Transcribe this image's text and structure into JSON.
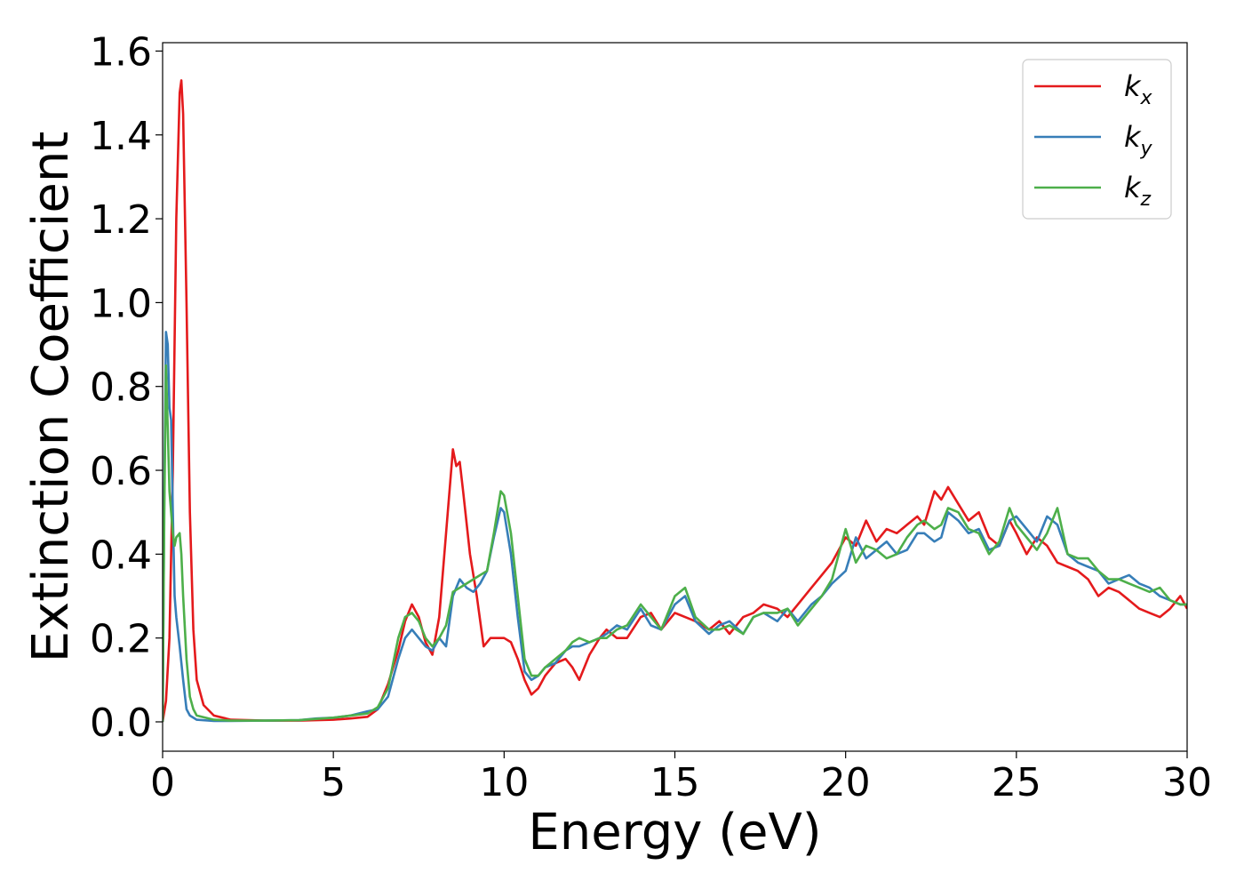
{
  "chart_data": {
    "type": "line",
    "title": "",
    "xlabel": "Energy (eV)",
    "ylabel": "Extinction Coefficient",
    "xlim": [
      0,
      30
    ],
    "ylim": [
      -0.07,
      1.62
    ],
    "xticks": [
      0,
      5,
      10,
      15,
      20,
      25,
      30
    ],
    "yticks": [
      0.0,
      0.2,
      0.4,
      0.6,
      0.8,
      1.0,
      1.2,
      1.4,
      1.6
    ],
    "xtick_labels": [
      "0",
      "5",
      "10",
      "15",
      "20",
      "25",
      "30"
    ],
    "ytick_labels": [
      "0.0",
      "0.2",
      "0.4",
      "0.6",
      "0.8",
      "1.0",
      "1.2",
      "1.4",
      "1.6"
    ],
    "grid": false,
    "legend_position": "top-right",
    "series": [
      {
        "name": "k_x",
        "legend_base": "k",
        "legend_sub": "x",
        "color": "#e41a1c",
        "x": [
          0,
          0.1,
          0.2,
          0.3,
          0.4,
          0.5,
          0.55,
          0.6,
          0.7,
          0.8,
          0.9,
          1.0,
          1.2,
          1.5,
          2,
          3,
          4,
          5,
          5.5,
          6,
          6.3,
          6.6,
          6.9,
          7.1,
          7.3,
          7.5,
          7.7,
          7.9,
          8.1,
          8.3,
          8.5,
          8.6,
          8.7,
          8.8,
          9.0,
          9.2,
          9.4,
          9.6,
          9.8,
          10.0,
          10.2,
          10.4,
          10.6,
          10.8,
          11.0,
          11.2,
          11.5,
          11.8,
          12.0,
          12.2,
          12.5,
          12.8,
          13.0,
          13.3,
          13.6,
          14.0,
          14.3,
          14.6,
          15.0,
          15.3,
          15.6,
          16.0,
          16.3,
          16.6,
          17.0,
          17.3,
          17.6,
          18.0,
          18.3,
          18.6,
          19.0,
          19.3,
          19.6,
          20.0,
          20.3,
          20.6,
          20.9,
          21.2,
          21.5,
          21.8,
          22.1,
          22.3,
          22.6,
          22.8,
          23.0,
          23.3,
          23.6,
          23.9,
          24.2,
          24.5,
          24.8,
          25.0,
          25.3,
          25.6,
          25.9,
          26.2,
          26.5,
          26.8,
          27.1,
          27.4,
          27.7,
          28.0,
          28.3,
          28.6,
          28.9,
          29.2,
          29.5,
          29.8,
          30.0
        ],
        "y": [
          0.0,
          0.05,
          0.2,
          0.6,
          1.2,
          1.5,
          1.53,
          1.45,
          1.0,
          0.5,
          0.22,
          0.1,
          0.04,
          0.015,
          0.005,
          0.003,
          0.003,
          0.005,
          0.008,
          0.012,
          0.03,
          0.09,
          0.17,
          0.24,
          0.28,
          0.25,
          0.19,
          0.16,
          0.25,
          0.45,
          0.65,
          0.61,
          0.62,
          0.55,
          0.4,
          0.3,
          0.18,
          0.2,
          0.2,
          0.2,
          0.19,
          0.15,
          0.1,
          0.065,
          0.08,
          0.11,
          0.14,
          0.15,
          0.13,
          0.1,
          0.16,
          0.2,
          0.22,
          0.2,
          0.2,
          0.25,
          0.26,
          0.22,
          0.26,
          0.25,
          0.24,
          0.22,
          0.24,
          0.21,
          0.25,
          0.26,
          0.28,
          0.27,
          0.25,
          0.28,
          0.32,
          0.35,
          0.38,
          0.44,
          0.42,
          0.48,
          0.43,
          0.46,
          0.45,
          0.47,
          0.49,
          0.47,
          0.55,
          0.53,
          0.56,
          0.52,
          0.48,
          0.5,
          0.44,
          0.42,
          0.48,
          0.45,
          0.4,
          0.44,
          0.42,
          0.38,
          0.37,
          0.36,
          0.34,
          0.3,
          0.32,
          0.31,
          0.29,
          0.27,
          0.26,
          0.25,
          0.27,
          0.3,
          0.27
        ]
      },
      {
        "name": "k_y",
        "legend_base": "k",
        "legend_sub": "y",
        "color": "#377eb8",
        "x": [
          0,
          0.05,
          0.1,
          0.15,
          0.2,
          0.25,
          0.3,
          0.35,
          0.4,
          0.5,
          0.6,
          0.7,
          0.8,
          1.0,
          1.5,
          2,
          3,
          4,
          4.5,
          5,
          5.5,
          6,
          6.3,
          6.6,
          6.9,
          7.1,
          7.3,
          7.5,
          7.7,
          7.9,
          8.1,
          8.3,
          8.5,
          8.7,
          8.9,
          9.1,
          9.3,
          9.5,
          9.7,
          9.9,
          10.0,
          10.2,
          10.4,
          10.6,
          10.8,
          11.0,
          11.2,
          11.5,
          11.8,
          12.0,
          12.2,
          12.5,
          12.8,
          13.0,
          13.3,
          13.6,
          14.0,
          14.3,
          14.6,
          15.0,
          15.3,
          15.6,
          16.0,
          16.3,
          16.6,
          17.0,
          17.3,
          17.6,
          18.0,
          18.3,
          18.6,
          19.0,
          19.3,
          19.6,
          20.0,
          20.3,
          20.6,
          20.9,
          21.2,
          21.5,
          21.8,
          22.1,
          22.3,
          22.6,
          22.8,
          23.0,
          23.3,
          23.6,
          23.9,
          24.2,
          24.5,
          24.8,
          25.0,
          25.3,
          25.6,
          25.9,
          26.2,
          26.5,
          26.8,
          27.1,
          27.4,
          27.7,
          28.0,
          28.3,
          28.6,
          28.9,
          29.2,
          29.5,
          29.8,
          30.0
        ],
        "y": [
          0.0,
          0.55,
          0.93,
          0.9,
          0.75,
          0.72,
          0.5,
          0.3,
          0.25,
          0.18,
          0.1,
          0.03,
          0.015,
          0.005,
          0.002,
          0.002,
          0.003,
          0.004,
          0.008,
          0.01,
          0.015,
          0.025,
          0.03,
          0.06,
          0.15,
          0.2,
          0.22,
          0.2,
          0.18,
          0.17,
          0.2,
          0.18,
          0.3,
          0.34,
          0.32,
          0.31,
          0.33,
          0.36,
          0.44,
          0.51,
          0.5,
          0.4,
          0.25,
          0.12,
          0.1,
          0.11,
          0.13,
          0.14,
          0.17,
          0.18,
          0.18,
          0.19,
          0.2,
          0.21,
          0.23,
          0.22,
          0.27,
          0.23,
          0.22,
          0.28,
          0.3,
          0.24,
          0.21,
          0.23,
          0.24,
          0.21,
          0.25,
          0.26,
          0.24,
          0.27,
          0.24,
          0.28,
          0.3,
          0.33,
          0.36,
          0.44,
          0.39,
          0.41,
          0.43,
          0.4,
          0.41,
          0.45,
          0.45,
          0.43,
          0.44,
          0.5,
          0.48,
          0.45,
          0.46,
          0.41,
          0.42,
          0.48,
          0.49,
          0.46,
          0.43,
          0.49,
          0.47,
          0.4,
          0.38,
          0.37,
          0.36,
          0.33,
          0.34,
          0.35,
          0.33,
          0.32,
          0.3,
          0.29,
          0.28,
          0.28
        ]
      },
      {
        "name": "k_z",
        "legend_base": "k",
        "legend_sub": "z",
        "color": "#4daf4a",
        "x": [
          0,
          0.05,
          0.1,
          0.15,
          0.2,
          0.25,
          0.3,
          0.35,
          0.4,
          0.5,
          0.55,
          0.6,
          0.7,
          0.8,
          0.9,
          1.0,
          1.5,
          2,
          3,
          4,
          4.5,
          5,
          5.5,
          6,
          6.3,
          6.6,
          6.9,
          7.1,
          7.3,
          7.5,
          7.7,
          7.9,
          8.1,
          8.3,
          8.5,
          8.7,
          8.9,
          9.1,
          9.3,
          9.5,
          9.7,
          9.9,
          10.0,
          10.2,
          10.4,
          10.6,
          10.8,
          11.0,
          11.2,
          11.5,
          11.8,
          12.0,
          12.2,
          12.5,
          12.8,
          13.0,
          13.3,
          13.6,
          14.0,
          14.3,
          14.6,
          15.0,
          15.3,
          15.6,
          16.0,
          16.3,
          16.6,
          17.0,
          17.3,
          17.6,
          18.0,
          18.3,
          18.6,
          19.0,
          19.3,
          19.6,
          20.0,
          20.3,
          20.6,
          20.9,
          21.2,
          21.5,
          21.8,
          22.1,
          22.3,
          22.6,
          22.8,
          23.0,
          23.3,
          23.6,
          23.9,
          24.2,
          24.5,
          24.8,
          25.0,
          25.3,
          25.6,
          25.9,
          26.2,
          26.5,
          26.8,
          27.1,
          27.4,
          27.7,
          28.0,
          28.3,
          28.6,
          28.9,
          29.2,
          29.5,
          29.8,
          30.0
        ],
        "y": [
          0.0,
          0.5,
          0.85,
          0.7,
          0.55,
          0.5,
          0.45,
          0.42,
          0.44,
          0.45,
          0.4,
          0.3,
          0.15,
          0.06,
          0.03,
          0.015,
          0.005,
          0.003,
          0.003,
          0.004,
          0.007,
          0.01,
          0.015,
          0.02,
          0.035,
          0.08,
          0.2,
          0.25,
          0.26,
          0.24,
          0.2,
          0.18,
          0.2,
          0.23,
          0.31,
          0.32,
          0.33,
          0.34,
          0.35,
          0.36,
          0.45,
          0.55,
          0.54,
          0.45,
          0.3,
          0.15,
          0.11,
          0.11,
          0.13,
          0.15,
          0.17,
          0.19,
          0.2,
          0.19,
          0.2,
          0.2,
          0.22,
          0.23,
          0.28,
          0.25,
          0.22,
          0.3,
          0.32,
          0.25,
          0.22,
          0.22,
          0.23,
          0.21,
          0.25,
          0.26,
          0.26,
          0.27,
          0.23,
          0.27,
          0.3,
          0.34,
          0.46,
          0.38,
          0.42,
          0.41,
          0.39,
          0.4,
          0.44,
          0.47,
          0.48,
          0.46,
          0.47,
          0.51,
          0.5,
          0.46,
          0.45,
          0.4,
          0.43,
          0.51,
          0.47,
          0.44,
          0.41,
          0.45,
          0.51,
          0.4,
          0.39,
          0.39,
          0.36,
          0.34,
          0.34,
          0.33,
          0.32,
          0.31,
          0.32,
          0.29,
          0.28,
          0.28
        ]
      }
    ]
  }
}
